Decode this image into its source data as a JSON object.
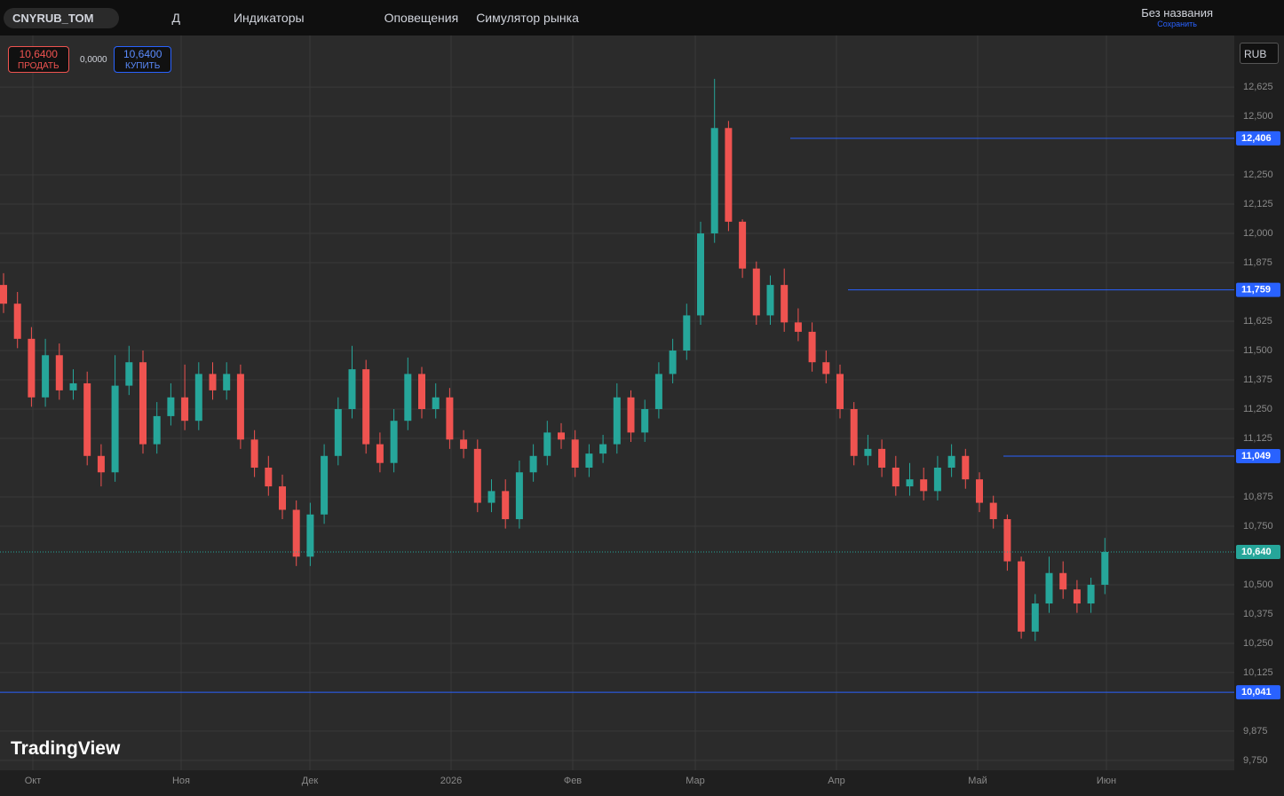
{
  "toolbar": {
    "symbol": "CNYRUB_TOM",
    "interval": "Д",
    "indicators": "Индикаторы",
    "alerts": "Оповещения",
    "replay": "Симулятор рынка",
    "layout_name": "Без названия",
    "save": "Сохранить"
  },
  "trade": {
    "sell_price": "10,6400",
    "sell": "ПРОДАТЬ",
    "spread": "0,0000",
    "buy_price": "10,6400",
    "buy": "КУПИТЬ"
  },
  "currency": "RUB",
  "brand": "TradingView",
  "chart_data": {
    "type": "candlestick",
    "up_color": "#26a69a",
    "down_color": "#ef5350",
    "level_color": "#2962ff",
    "open": [
      11.78,
      11.7,
      11.55,
      11.3,
      11.48,
      11.33,
      11.36,
      11.05,
      10.98,
      11.35,
      11.45,
      11.1,
      11.22,
      11.3,
      11.2,
      11.4,
      11.33,
      11.4,
      11.12,
      11.0,
      10.92,
      10.82,
      10.62,
      10.8,
      11.05,
      11.25,
      11.42,
      11.1,
      11.02,
      11.2,
      11.4,
      11.25,
      11.3,
      11.12,
      11.08,
      10.85,
      10.9,
      10.78,
      10.98,
      11.05,
      11.15,
      11.12,
      11.0,
      11.06,
      11.1,
      11.3,
      11.15,
      11.25,
      11.4,
      11.5,
      11.65,
      12.0,
      12.45,
      12.05,
      11.85,
      11.65,
      11.78,
      11.62,
      11.58,
      11.45,
      11.4,
      11.25,
      11.05,
      11.08,
      11.0,
      10.92,
      10.95,
      10.9,
      11.0,
      11.05,
      10.95,
      10.85,
      10.78,
      10.6,
      10.3,
      10.42,
      10.55,
      10.48,
      10.42,
      10.5
    ],
    "high": [
      11.83,
      11.75,
      11.6,
      11.55,
      11.53,
      11.42,
      11.41,
      11.1,
      11.48,
      11.52,
      11.5,
      11.28,
      11.36,
      11.44,
      11.45,
      11.45,
      11.45,
      11.44,
      11.16,
      11.05,
      10.97,
      10.86,
      10.85,
      11.1,
      11.3,
      11.52,
      11.46,
      11.15,
      11.25,
      11.47,
      11.43,
      11.36,
      11.34,
      11.16,
      11.12,
      10.95,
      10.95,
      11.03,
      11.1,
      11.2,
      11.19,
      11.16,
      11.1,
      11.14,
      11.36,
      11.33,
      11.29,
      11.45,
      11.55,
      11.7,
      12.05,
      12.66,
      12.48,
      12.06,
      11.88,
      11.82,
      11.85,
      11.68,
      11.62,
      11.5,
      11.44,
      11.28,
      11.14,
      11.12,
      11.05,
      11.02,
      11.0,
      11.05,
      11.1,
      11.08,
      10.98,
      10.88,
      10.8,
      10.62,
      10.46,
      10.62,
      10.6,
      10.52,
      10.53,
      10.7
    ],
    "low": [
      11.66,
      11.51,
      11.26,
      11.26,
      11.29,
      11.29,
      11.01,
      10.92,
      10.94,
      11.31,
      11.06,
      11.06,
      11.18,
      11.16,
      11.16,
      11.29,
      11.29,
      11.08,
      10.96,
      10.88,
      10.78,
      10.58,
      10.58,
      10.76,
      11.01,
      11.21,
      11.06,
      10.98,
      10.98,
      11.16,
      11.21,
      11.21,
      11.08,
      11.04,
      10.81,
      10.81,
      10.74,
      10.74,
      10.94,
      11.01,
      11.08,
      10.96,
      10.96,
      11.02,
      11.06,
      11.11,
      11.11,
      11.21,
      11.36,
      11.46,
      11.61,
      11.96,
      12.01,
      11.81,
      11.61,
      11.61,
      11.58,
      11.54,
      11.41,
      11.36,
      11.21,
      11.01,
      11.01,
      10.96,
      10.88,
      10.88,
      10.86,
      10.86,
      10.96,
      10.91,
      10.81,
      10.74,
      10.56,
      10.27,
      10.26,
      10.38,
      10.44,
      10.38,
      10.38,
      10.46
    ],
    "close": [
      11.7,
      11.55,
      11.3,
      11.48,
      11.33,
      11.36,
      11.05,
      10.98,
      11.35,
      11.45,
      11.1,
      11.22,
      11.3,
      11.2,
      11.4,
      11.33,
      11.4,
      11.12,
      11.0,
      10.92,
      10.82,
      10.62,
      10.8,
      11.05,
      11.25,
      11.42,
      11.1,
      11.02,
      11.2,
      11.4,
      11.25,
      11.3,
      11.12,
      11.08,
      10.85,
      10.9,
      10.78,
      10.98,
      11.05,
      11.15,
      11.12,
      11.0,
      11.06,
      11.1,
      11.3,
      11.15,
      11.25,
      11.4,
      11.5,
      11.65,
      12.0,
      12.45,
      12.05,
      11.85,
      11.65,
      11.78,
      11.62,
      11.58,
      11.45,
      11.4,
      11.25,
      11.05,
      11.08,
      11.0,
      10.92,
      10.95,
      10.9,
      11.0,
      11.05,
      10.95,
      10.85,
      10.78,
      10.6,
      10.3,
      10.42,
      10.55,
      10.48,
      10.42,
      10.5,
      10.64
    ],
    "ylim": [
      9.708,
      12.845
    ],
    "yticks": [
      {
        "value": 12.625,
        "label": "12,625"
      },
      {
        "value": 12.5,
        "label": "12,500"
      },
      {
        "value": 12.25,
        "label": "12,250"
      },
      {
        "value": 12.125,
        "label": "12,125"
      },
      {
        "value": 12.0,
        "label": "12,000"
      },
      {
        "value": 11.875,
        "label": "11,875"
      },
      {
        "value": 11.625,
        "label": "11,625"
      },
      {
        "value": 11.5,
        "label": "11,500"
      },
      {
        "value": 11.375,
        "label": "11,375"
      },
      {
        "value": 11.25,
        "label": "11,250"
      },
      {
        "value": 11.125,
        "label": "11,125"
      },
      {
        "value": 10.875,
        "label": "10,875"
      },
      {
        "value": 10.75,
        "label": "10,750"
      },
      {
        "value": 10.5,
        "label": "10,500"
      },
      {
        "value": 10.375,
        "label": "10,375"
      },
      {
        "value": 10.25,
        "label": "10,250"
      },
      {
        "value": 10.125,
        "label": "10,125"
      },
      {
        "value": 9.875,
        "label": "9,875"
      },
      {
        "value": 9.75,
        "label": "9,750"
      }
    ],
    "x_labels": [
      "Окт",
      "Ноя",
      "Дек",
      "2026",
      "Фев",
      "Мар",
      "Апр",
      "Май",
      "Июн"
    ],
    "levels": [
      {
        "value": 12.406,
        "label": "12,406"
      },
      {
        "value": 11.759,
        "label": "11,759"
      },
      {
        "value": 11.049,
        "label": "11,049"
      },
      {
        "value": 10.041,
        "label": "10,041"
      }
    ],
    "current": {
      "value": 10.64,
      "label": "10,640"
    }
  }
}
